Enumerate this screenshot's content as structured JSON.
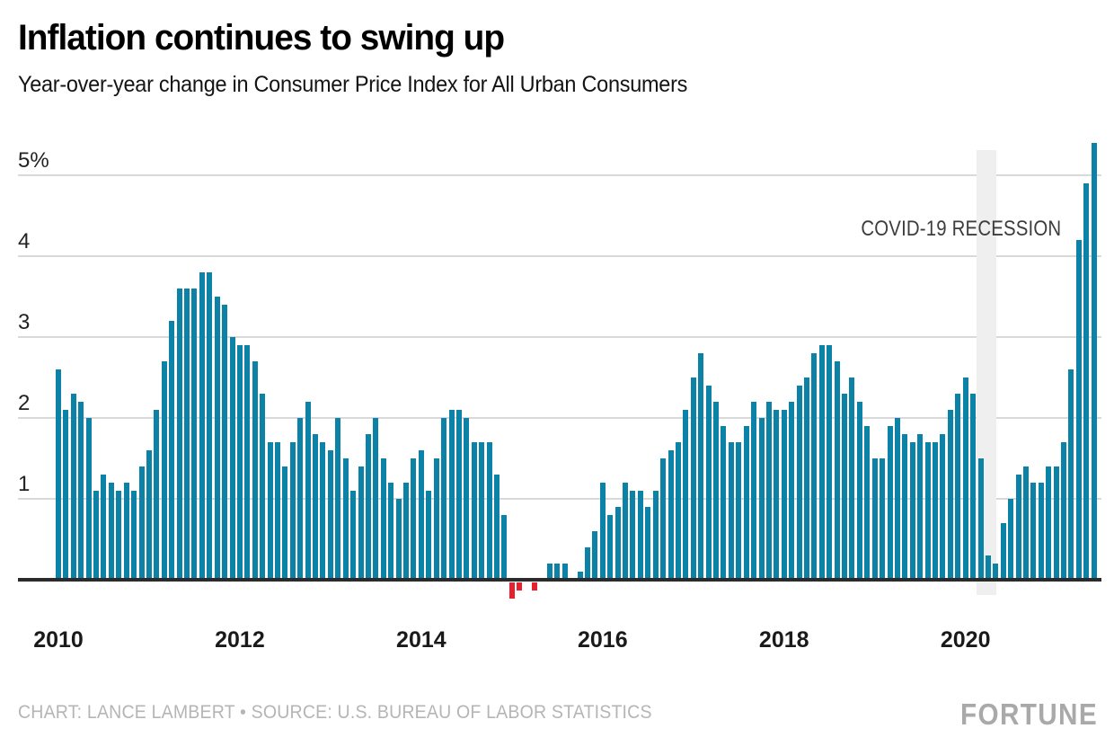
{
  "header": {
    "title": "Inflation continues to swing up",
    "subtitle": "Year-over-year change in Consumer Price Index for All Urban Consumers"
  },
  "annotations": {
    "recession_label": "COVID-19 RECESSION"
  },
  "footer": {
    "credit": "CHART: LANCE LAMBERT • SOURCE: U.S. BUREAU OF LABOR STATISTICS",
    "logo": "FORTUNE"
  },
  "colors": {
    "bar_positive": "#0d82a7",
    "bar_negative": "#e8202e",
    "gridline": "#d9d9d9",
    "baseline": "#2b2b2b",
    "recession_band": "#efefef",
    "annotation_text": "#3d3d3d",
    "footer_text": "#b5b5b5",
    "logo_text": "#a9a9a9"
  },
  "chart_data": {
    "type": "bar",
    "title": "Inflation continues to swing up",
    "subtitle": "Year-over-year change in Consumer Price Index for All Urban Consumers",
    "unit": "percent",
    "frequency": "monthly",
    "start_month": "2010-01",
    "end_month": "2021-06",
    "ylim": [
      -0.3,
      5.5
    ],
    "grid": true,
    "y_ticks": [
      {
        "label": "5%",
        "value": 5
      },
      {
        "label": "4",
        "value": 4
      },
      {
        "label": "3",
        "value": 3
      },
      {
        "label": "2",
        "value": 2
      },
      {
        "label": "1",
        "value": 1
      }
    ],
    "x_ticks": [
      {
        "label": "2010",
        "month_index": 0
      },
      {
        "label": "2012",
        "month_index": 24
      },
      {
        "label": "2014",
        "month_index": 48
      },
      {
        "label": "2016",
        "month_index": 72
      },
      {
        "label": "2018",
        "month_index": 96
      },
      {
        "label": "2020",
        "month_index": 120
      }
    ],
    "recession_band": {
      "label": "COVID-19 RECESSION",
      "from": "2020-03",
      "to": "2020-04"
    },
    "series": [
      {
        "name": "Year-over-year CPI change (%)",
        "values_by_year": {
          "2010": [
            2.6,
            2.1,
            2.3,
            2.2,
            2.0,
            1.1,
            1.3,
            1.2,
            1.1,
            1.2,
            1.1,
            1.4
          ],
          "2011": [
            1.6,
            2.1,
            2.7,
            3.2,
            3.6,
            3.6,
            3.6,
            3.8,
            3.8,
            3.5,
            3.4,
            3.0
          ],
          "2012": [
            2.9,
            2.9,
            2.7,
            2.3,
            1.7,
            1.7,
            1.4,
            1.7,
            2.0,
            2.2,
            1.8,
            1.7
          ],
          "2013": [
            1.6,
            2.0,
            1.5,
            1.1,
            1.4,
            1.8,
            2.0,
            1.5,
            1.2,
            1.0,
            1.2,
            1.5
          ],
          "2014": [
            1.6,
            1.1,
            1.5,
            2.0,
            2.1,
            2.1,
            2.0,
            1.7,
            1.7,
            1.7,
            1.3,
            0.8
          ],
          "2015": [
            -0.2,
            -0.1,
            0.0,
            -0.1,
            0.0,
            0.2,
            0.2,
            0.2,
            0.0,
            0.1,
            0.4,
            0.6
          ],
          "2016": [
            1.2,
            0.8,
            0.9,
            1.2,
            1.1,
            1.1,
            0.9,
            1.1,
            1.5,
            1.6,
            1.7,
            2.1
          ],
          "2017": [
            2.5,
            2.8,
            2.4,
            2.2,
            1.9,
            1.7,
            1.7,
            1.9,
            2.2,
            2.0,
            2.2,
            2.1
          ],
          "2018": [
            2.1,
            2.2,
            2.4,
            2.5,
            2.8,
            2.9,
            2.9,
            2.7,
            2.3,
            2.5,
            2.2,
            1.9
          ],
          "2019": [
            1.5,
            1.5,
            1.9,
            2.0,
            1.8,
            1.7,
            1.8,
            1.7,
            1.7,
            1.8,
            2.1,
            2.3
          ],
          "2020": [
            2.5,
            2.3,
            1.5,
            0.3,
            0.2,
            0.7,
            1.0,
            1.3,
            1.4,
            1.2,
            1.2,
            1.4
          ],
          "2021": [
            1.4,
            1.7,
            2.6,
            4.2,
            4.9,
            5.4
          ]
        }
      }
    ]
  }
}
